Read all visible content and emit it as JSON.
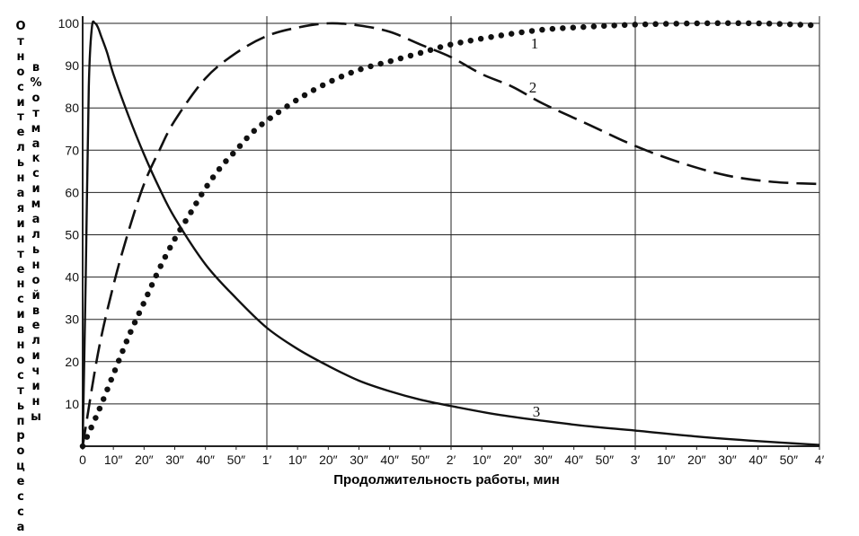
{
  "chart_data": {
    "type": "line",
    "xlabel": "Продолжительность работы, мин",
    "ylabel_part1": "Относительная интенсивность процесса",
    "ylabel_part2": "в % от максимальной величины",
    "xlim_seconds": [
      0,
      240
    ],
    "ylim": [
      0,
      100
    ],
    "x_tick_labels": [
      "0",
      "10″",
      "20″",
      "30″",
      "40″",
      "50″",
      "1′",
      "10″",
      "20″",
      "30″",
      "40″",
      "50″",
      "2′",
      "10″",
      "20″",
      "30″",
      "40″",
      "50″",
      "3′",
      "10″",
      "20″",
      "30″",
      "40″",
      "50″",
      "4′"
    ],
    "y_tick_labels": [
      "10",
      "20",
      "30",
      "40",
      "50",
      "60",
      "70",
      "80",
      "90",
      "100"
    ],
    "series": [
      {
        "name": "1",
        "style": "dotted",
        "x_seconds": [
          0,
          5,
          10,
          15,
          20,
          25,
          30,
          35,
          40,
          45,
          50,
          55,
          60,
          70,
          80,
          90,
          100,
          110,
          120,
          135,
          150,
          165,
          180,
          200,
          220,
          240
        ],
        "values": [
          0,
          8,
          17,
          26,
          34,
          42,
          49,
          55,
          61,
          66,
          70,
          74,
          77,
          82,
          86,
          89,
          91,
          93,
          95,
          97,
          98.5,
          99.2,
          99.7,
          100,
          100,
          99.5
        ]
      },
      {
        "name": "2",
        "style": "dashed",
        "x_seconds": [
          0,
          5,
          10,
          15,
          20,
          25,
          30,
          40,
          50,
          60,
          70,
          80,
          90,
          100,
          110,
          120,
          130,
          140,
          150,
          165,
          180,
          195,
          210,
          225,
          240
        ],
        "values": [
          0,
          22,
          38,
          51,
          62,
          70,
          77,
          87,
          93,
          97,
          99,
          100,
          99.5,
          98,
          95,
          92,
          88,
          85,
          81,
          76,
          71,
          67,
          64,
          62.5,
          62
        ]
      },
      {
        "name": "3",
        "style": "solid",
        "x_seconds": [
          0,
          1,
          2,
          3,
          4,
          5,
          6,
          8,
          10,
          15,
          20,
          25,
          30,
          40,
          50,
          60,
          70,
          80,
          90,
          100,
          110,
          120,
          135,
          150,
          165,
          180,
          200,
          220,
          240
        ],
        "values": [
          0,
          40,
          85,
          99,
          100,
          99,
          97,
          93,
          88,
          78,
          69,
          61,
          54,
          43,
          35,
          28,
          23,
          19,
          15.5,
          13,
          11,
          9.5,
          7.5,
          6,
          4.7,
          3.7,
          2.3,
          1.2,
          0.3
        ]
      }
    ]
  }
}
